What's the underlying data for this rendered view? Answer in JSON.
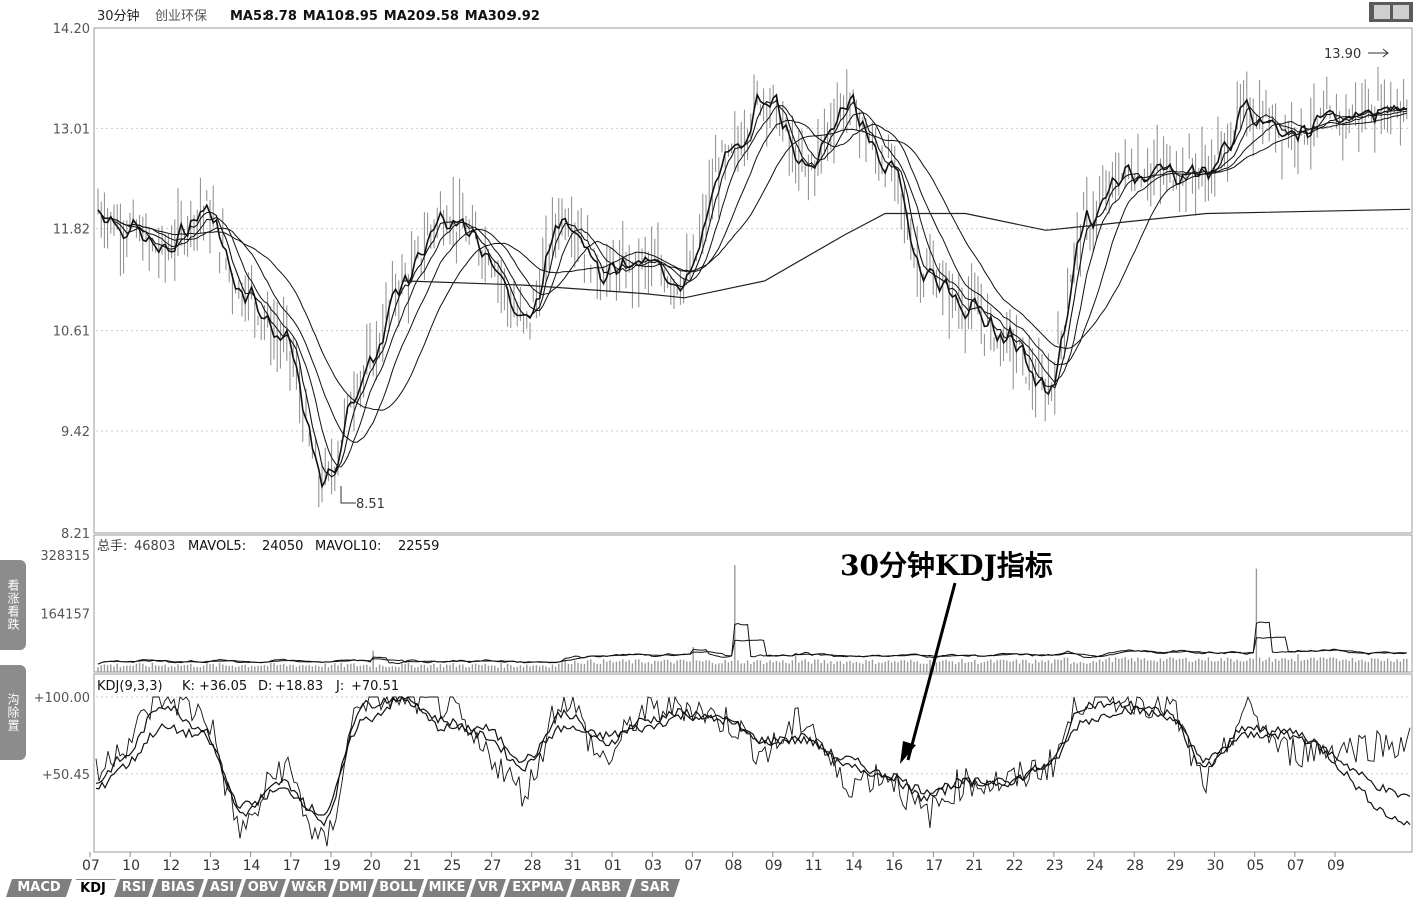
{
  "main": {
    "header": {
      "period": "30分钟",
      "stock": "创业环保",
      "ma_items": [
        {
          "label": "MA5:",
          "value": "8.78"
        },
        {
          "label": "MA10:",
          "value": "8.95"
        },
        {
          "label": "MA20:",
          "value": "9.58"
        },
        {
          "label": "MA30:",
          "value": "9.92"
        }
      ]
    },
    "y_ticks": [
      "14.20",
      "13.01",
      "11.82",
      "10.61",
      "9.42",
      "8.21"
    ],
    "y_tick_values": [
      14.2,
      13.01,
      11.82,
      10.61,
      9.42,
      8.21
    ],
    "high_label": "13.90",
    "low_label": "8.51"
  },
  "volume": {
    "header": {
      "label": "总手:",
      "value": "46803",
      "mavol5_label": "MAVOL5:",
      "mavol5": "24050",
      "mavol10_label": "MAVOL10:",
      "mavol10": "22559"
    },
    "y_ticks": [
      "328315",
      "164157"
    ],
    "y_tick_values": [
      328315,
      164157
    ]
  },
  "kdj": {
    "header": {
      "name": "KDJ(9,3,3)",
      "k_label": "K:",
      "k": "+36.05",
      "d_label": "D:",
      "d": "+18.83",
      "j_label": "J:",
      "j": "+70.51"
    },
    "y_ticks": [
      "+100.00",
      "+50.45"
    ],
    "y_tick_values": [
      100.0,
      50.45
    ]
  },
  "x_labels": [
    "07",
    "10",
    "12",
    "13",
    "14",
    "17",
    "19",
    "20",
    "21",
    "25",
    "27",
    "28",
    "31",
    "01",
    "03",
    "07",
    "08",
    "09",
    "11",
    "14",
    "16",
    "17",
    "21",
    "22",
    "23",
    "24",
    "28",
    "29",
    "30",
    "05",
    "07",
    "09"
  ],
  "annotation": "30分钟KDJ指标",
  "side_buttons": [
    "看涨看跌",
    "沟除置"
  ],
  "tabs": [
    "MACD",
    "KDJ",
    "RSI",
    "BIAS",
    "ASI",
    "OBV",
    "W&R",
    "DMI",
    "BOLL",
    "MIKE",
    "VR",
    "EXPMA",
    "ARBR",
    "SAR"
  ],
  "active_tab": "KDJ",
  "colors": {
    "line": "#000000",
    "bar": "#9a9a9a",
    "grid": "#c8c8c8",
    "frame": "#9a9a9a",
    "text": "#444444",
    "tab": "#7f7f7f"
  },
  "chart_data": [
    {
      "type": "line",
      "title": "30分钟 创业环保",
      "ylim": [
        8.21,
        14.2
      ],
      "grid": true,
      "price_path": [
        {
          "x": "07",
          "y": 12.05
        },
        {
          "x": "10",
          "y": 11.85
        },
        {
          "x": "12",
          "y": 11.55
        },
        {
          "x": "13",
          "y": 12.05
        },
        {
          "x": "14",
          "y": 11.1
        },
        {
          "x": "17",
          "y": 10.5
        },
        {
          "x": "19",
          "y": 8.8
        },
        {
          "x": "20",
          "y": 10.1
        },
        {
          "x": "21",
          "y": 11.2
        },
        {
          "x": "25",
          "y": 12.0
        },
        {
          "x": "27",
          "y": 11.6
        },
        {
          "x": "28",
          "y": 10.7
        },
        {
          "x": "31",
          "y": 12.0
        },
        {
          "x": "01",
          "y": 11.3
        },
        {
          "x": "03",
          "y": 11.4
        },
        {
          "x": "07",
          "y": 11.2
        },
        {
          "x": "08",
          "y": 12.6
        },
        {
          "x": "09",
          "y": 13.4
        },
        {
          "x": "11",
          "y": 12.5
        },
        {
          "x": "14",
          "y": 13.3
        },
        {
          "x": "16",
          "y": 12.6
        },
        {
          "x": "17",
          "y": 11.3
        },
        {
          "x": "21",
          "y": 10.9
        },
        {
          "x": "22",
          "y": 10.5
        },
        {
          "x": "23",
          "y": 9.9
        },
        {
          "x": "24",
          "y": 11.9
        },
        {
          "x": "28",
          "y": 12.5
        },
        {
          "x": "29",
          "y": 12.5
        },
        {
          "x": "30",
          "y": 12.5
        },
        {
          "x": "05",
          "y": 13.2
        },
        {
          "x": "07",
          "y": 13.0
        },
        {
          "x": "09",
          "y": 13.3
        }
      ],
      "long_ma_path": [
        {
          "x": "21",
          "y": 11.2
        },
        {
          "x": "28",
          "y": 11.15
        },
        {
          "x": "03",
          "y": 11.05
        },
        {
          "x": "07",
          "y": 11.0
        },
        {
          "x": "09",
          "y": 11.2
        },
        {
          "x": "14",
          "y": 11.75
        },
        {
          "x": "16",
          "y": 12.0
        },
        {
          "x": "21",
          "y": 12.0
        },
        {
          "x": "23",
          "y": 11.8
        },
        {
          "x": "24",
          "y": 11.85
        },
        {
          "x": "30",
          "y": 12.0
        },
        {
          "x": "09",
          "y": 12.05
        }
      ],
      "annotations": [
        {
          "text": "13.90",
          "value": 13.9
        },
        {
          "text": "8.51",
          "value": 8.51
        }
      ]
    },
    {
      "type": "bar",
      "title": "总手",
      "ylim": [
        0,
        328315
      ],
      "peaks": [
        {
          "x": "17",
          "value": 20000
        },
        {
          "x": "20",
          "value": 60000
        },
        {
          "x": "03",
          "value": 70000
        },
        {
          "x": "08",
          "value": 300000
        },
        {
          "x": "09",
          "value": 45000
        },
        {
          "x": "24",
          "value": 40000
        },
        {
          "x": "05",
          "value": 290000
        },
        {
          "x": "07",
          "value": 50000
        },
        {
          "x": "09",
          "value": 35000
        }
      ]
    },
    {
      "type": "line",
      "title": "KDJ(9,3,3)",
      "ylim": [
        0,
        100
      ],
      "series": [
        {
          "name": "K",
          "values": [
            45,
            60,
            95,
            80,
            25,
            45,
            20,
            95,
            100,
            85,
            75,
            55,
            90,
            70,
            85,
            90,
            85,
            70,
            75,
            55,
            50,
            35,
            45,
            45,
            55,
            95,
            95,
            90,
            55,
            80,
            75,
            36.05
          ]
        },
        {
          "name": "D",
          "values": [
            40,
            55,
            80,
            75,
            30,
            40,
            25,
            85,
            98,
            80,
            80,
            60,
            80,
            75,
            80,
            88,
            85,
            72,
            72,
            60,
            50,
            40,
            45,
            45,
            55,
            85,
            92,
            88,
            60,
            75,
            78,
            18.83
          ]
        },
        {
          "name": "J",
          "values": [
            50,
            70,
            100,
            90,
            15,
            55,
            5,
            100,
            100,
            95,
            65,
            40,
            100,
            60,
            90,
            95,
            85,
            65,
            85,
            45,
            50,
            25,
            45,
            45,
            55,
            100,
            100,
            95,
            45,
            90,
            65,
            70.51
          ]
        }
      ]
    }
  ]
}
